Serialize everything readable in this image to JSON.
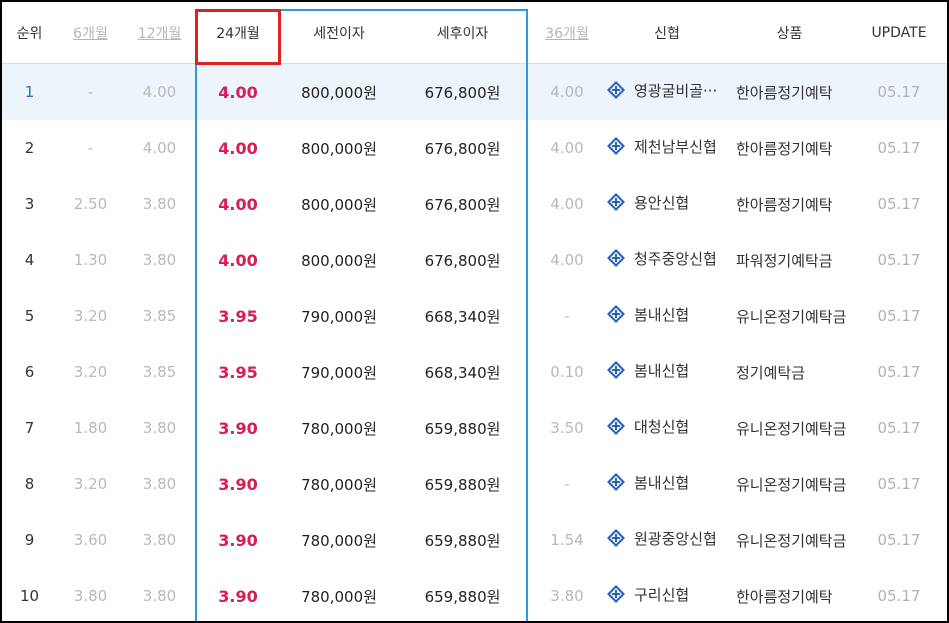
{
  "colors": {
    "highlight_rate": "#d51d56",
    "column_border": "#2d9bdb",
    "header_box": "#e02121",
    "row_highlight_bg": "#eef4fb",
    "muted": "#b9b9b9"
  },
  "header": {
    "rank": "순위",
    "m6": "6개월",
    "m12": "12개월",
    "m24": "24개월",
    "pretax": "세전이자",
    "aftertax": "세후이자",
    "m36": "36개월",
    "bank": "신협",
    "product": "상품",
    "update": "UPDATE"
  },
  "rows": [
    {
      "rank": "1",
      "m6": "-",
      "m12": "4.00",
      "m24": "4.00",
      "pretax": "800,000원",
      "aftertax": "676,800원",
      "m36": "4.00",
      "bank_icon": "shinhyup-logo-icon",
      "bank": "영광굴비골···",
      "product": "한아름정기예탁",
      "update": "05.17"
    },
    {
      "rank": "2",
      "m6": "-",
      "m12": "4.00",
      "m24": "4.00",
      "pretax": "800,000원",
      "aftertax": "676,800원",
      "m36": "4.00",
      "bank_icon": "shinhyup-logo-icon",
      "bank": "제천남부신협",
      "product": "한아름정기예탁",
      "update": "05.17"
    },
    {
      "rank": "3",
      "m6": "2.50",
      "m12": "3.80",
      "m24": "4.00",
      "pretax": "800,000원",
      "aftertax": "676,800원",
      "m36": "4.00",
      "bank_icon": "shinhyup-logo-icon",
      "bank": "용안신협",
      "product": "한아름정기예탁",
      "update": "05.17"
    },
    {
      "rank": "4",
      "m6": "1.30",
      "m12": "3.80",
      "m24": "4.00",
      "pretax": "800,000원",
      "aftertax": "676,800원",
      "m36": "4.00",
      "bank_icon": "shinhyup-logo-icon",
      "bank": "청주중앙신협",
      "product": "파워정기예탁금",
      "update": "05.17"
    },
    {
      "rank": "5",
      "m6": "3.20",
      "m12": "3.85",
      "m24": "3.95",
      "pretax": "790,000원",
      "aftertax": "668,340원",
      "m36": "-",
      "bank_icon": "shinhyup-logo-icon",
      "bank": "봄내신협",
      "product": "유니온정기예탁금",
      "update": "05.17"
    },
    {
      "rank": "6",
      "m6": "3.20",
      "m12": "3.85",
      "m24": "3.95",
      "pretax": "790,000원",
      "aftertax": "668,340원",
      "m36": "0.10",
      "bank_icon": "shinhyup-logo-icon",
      "bank": "봄내신협",
      "product": "정기예탁금",
      "update": "05.17"
    },
    {
      "rank": "7",
      "m6": "1.80",
      "m12": "3.80",
      "m24": "3.90",
      "pretax": "780,000원",
      "aftertax": "659,880원",
      "m36": "3.50",
      "bank_icon": "shinhyup-logo-icon",
      "bank": "대청신협",
      "product": "유니온정기예탁금",
      "update": "05.17"
    },
    {
      "rank": "8",
      "m6": "3.20",
      "m12": "3.80",
      "m24": "3.90",
      "pretax": "780,000원",
      "aftertax": "659,880원",
      "m36": "-",
      "bank_icon": "shinhyup-logo-icon",
      "bank": "봄내신협",
      "product": "유니온정기예탁금",
      "update": "05.17"
    },
    {
      "rank": "9",
      "m6": "3.60",
      "m12": "3.80",
      "m24": "3.90",
      "pretax": "780,000원",
      "aftertax": "659,880원",
      "m36": "1.54",
      "bank_icon": "shinhyup-logo-icon",
      "bank": "원광중앙신협",
      "product": "유니온정기예탁금",
      "update": "05.17"
    },
    {
      "rank": "10",
      "m6": "3.80",
      "m12": "3.80",
      "m24": "3.90",
      "pretax": "780,000원",
      "aftertax": "659,880원",
      "m36": "3.80",
      "bank_icon": "shinhyup-logo-icon",
      "bank": "구리신협",
      "product": "한아름정기예탁",
      "update": "05.17"
    }
  ]
}
